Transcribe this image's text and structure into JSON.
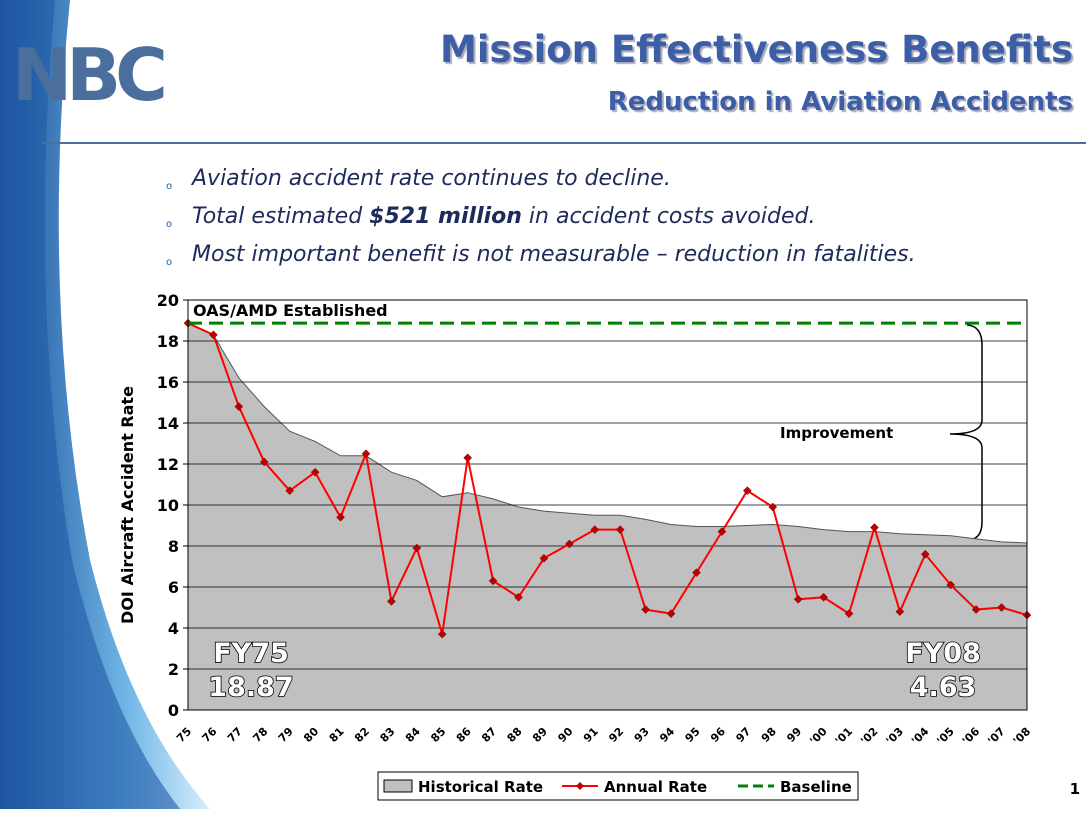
{
  "header": {
    "logo": "NBC",
    "title": "Mission Effectiveness Benefits",
    "subtitle": "Reduction in Aviation Accidents"
  },
  "bullets": [
    [
      "Aviation accident rate continues to decline."
    ],
    [
      "Total estimated ",
      "$521 million",
      " in accident costs avoided."
    ],
    [
      "Most important benefit is not measurable – reduction in fatalities."
    ]
  ],
  "page_number": "1",
  "chart_data": {
    "type": "area-line",
    "ylabel": "DOI Aircraft Accident Rate",
    "annotations": {
      "start": "OAS/AMD Established",
      "bracket": "Improvement",
      "first_label": "FY75",
      "first_value": "18.87",
      "last_label": "FY08",
      "last_value": "4.63"
    },
    "categories": [
      "75",
      "76",
      "77",
      "78",
      "79",
      "80",
      "81",
      "82",
      "83",
      "84",
      "85",
      "86",
      "87",
      "88",
      "89",
      "90",
      "91",
      "92",
      "93",
      "94",
      "95",
      "96",
      "97",
      "98",
      "99",
      "'00",
      "'01",
      "'02",
      "'03",
      "'04",
      "'05",
      "'06",
      "'07",
      "'08"
    ],
    "series": [
      {
        "name": "Historical Rate",
        "color": "#c0c0c0",
        "kind": "area",
        "values": [
          18.87,
          18.3,
          16.2,
          14.8,
          13.6,
          13.1,
          12.4,
          12.4,
          11.6,
          11.2,
          10.4,
          10.6,
          10.3,
          9.9,
          9.7,
          9.6,
          9.5,
          9.5,
          9.3,
          9.05,
          8.95,
          8.95,
          9.0,
          9.05,
          8.95,
          8.8,
          8.7,
          8.7,
          8.6,
          8.55,
          8.5,
          8.35,
          8.2,
          8.15
        ]
      },
      {
        "name": "Annual Rate",
        "color": "#ff0000",
        "kind": "line",
        "values": [
          18.87,
          18.3,
          14.8,
          12.1,
          10.7,
          11.6,
          9.4,
          12.5,
          5.3,
          7.9,
          3.7,
          12.3,
          6.3,
          5.5,
          7.4,
          8.1,
          8.8,
          8.8,
          4.9,
          4.7,
          6.7,
          8.7,
          10.7,
          9.9,
          5.4,
          5.5,
          4.7,
          8.9,
          4.8,
          7.6,
          6.1,
          4.9,
          5.0,
          4.63
        ]
      },
      {
        "name": "Baseline",
        "color": "#008000",
        "kind": "dashed",
        "values": [
          18.87,
          18.87,
          18.87,
          18.87,
          18.87,
          18.87,
          18.87,
          18.87,
          18.87,
          18.87,
          18.87,
          18.87,
          18.87,
          18.87,
          18.87,
          18.87,
          18.87,
          18.87,
          18.87,
          18.87,
          18.87,
          18.87,
          18.87,
          18.87,
          18.87,
          18.87,
          18.87,
          18.87,
          18.87,
          18.87,
          18.87,
          18.87,
          18.87,
          18.87
        ]
      }
    ],
    "ylim": [
      0,
      20
    ],
    "yticks": [
      0,
      2,
      4,
      6,
      8,
      10,
      12,
      14,
      16,
      18,
      20
    ],
    "grid": true
  }
}
